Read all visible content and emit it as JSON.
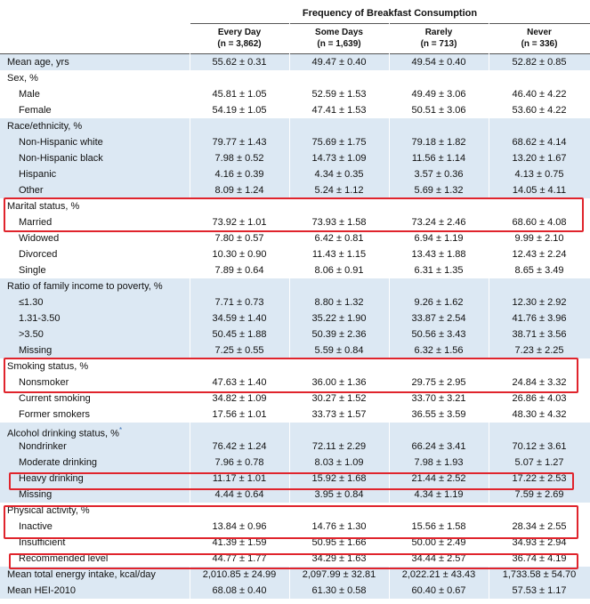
{
  "header": {
    "group_title": "Frequency of Breakfast Consumption",
    "columns": [
      {
        "name": "Every Day",
        "n": "(n = 3,862)"
      },
      {
        "name": "Some Days",
        "n": "(n = 1,639)"
      },
      {
        "name": "Rarely",
        "n": "(n = 713)"
      },
      {
        "name": "Never",
        "n": "(n = 336)"
      }
    ]
  },
  "rows": [
    {
      "label": "Mean age, yrs",
      "values": [
        "55.62 ± 0.31",
        "49.47 ± 0.40",
        "49.54 ± 0.40",
        "52.82 ± 0.85"
      ]
    },
    {
      "label": "Sex, %",
      "values": [
        "",
        "",
        "",
        ""
      ]
    },
    {
      "label": "Male",
      "values": [
        "45.81 ± 1.05",
        "52.59 ± 1.53",
        "49.49 ± 3.06",
        "46.40 ± 4.22"
      ]
    },
    {
      "label": "Female",
      "values": [
        "54.19 ± 1.05",
        "47.41 ± 1.53",
        "50.51 ± 3.06",
        "53.60 ± 4.22"
      ]
    },
    {
      "label": "Race/ethnicity, %",
      "values": [
        "",
        "",
        "",
        ""
      ]
    },
    {
      "label": "Non-Hispanic white",
      "values": [
        "79.77 ± 1.43",
        "75.69 ± 1.75",
        "79.18 ± 1.82",
        "68.62 ± 4.14"
      ]
    },
    {
      "label": "Non-Hispanic black",
      "values": [
        "7.98 ± 0.52",
        "14.73 ± 1.09",
        "11.56 ± 1.14",
        "13.20 ± 1.67"
      ]
    },
    {
      "label": "Hispanic",
      "values": [
        "4.16 ± 0.39",
        "4.34 ± 0.35",
        "3.57 ± 0.36",
        "4.13 ± 0.75"
      ]
    },
    {
      "label": "Other",
      "values": [
        "8.09 ± 1.24",
        "5.24 ± 1.12",
        "5.69 ± 1.32",
        "14.05 ± 4.11"
      ]
    },
    {
      "label": "Marital status, %",
      "values": [
        "",
        "",
        "",
        ""
      ]
    },
    {
      "label": "Married",
      "values": [
        "73.92 ± 1.01",
        "73.93 ± 1.58",
        "73.24 ± 2.46",
        "68.60 ± 4.08"
      ]
    },
    {
      "label": "Widowed",
      "values": [
        "7.80 ± 0.57",
        "6.42 ± 0.81",
        "6.94 ± 1.19",
        "9.99 ± 2.10"
      ]
    },
    {
      "label": "Divorced",
      "values": [
        "10.30 ± 0.90",
        "11.43 ± 1.15",
        "13.43 ± 1.88",
        "12.43 ± 2.24"
      ]
    },
    {
      "label": "Single",
      "values": [
        "7.89 ± 0.64",
        "8.06 ± 0.91",
        "6.31 ± 1.35",
        "8.65 ± 3.49"
      ]
    },
    {
      "label": "Ratio of family income to poverty, %",
      "values": [
        "",
        "",
        "",
        ""
      ]
    },
    {
      "label": "≤1.30",
      "values": [
        "7.71 ± 0.73",
        "8.80 ± 1.32",
        "9.26 ± 1.62",
        "12.30 ± 2.92"
      ]
    },
    {
      "label": "1.31-3.50",
      "values": [
        "34.59 ± 1.40",
        "35.22 ± 1.90",
        "33.87 ± 2.54",
        "41.76 ± 3.96"
      ]
    },
    {
      "label": ">3.50",
      "values": [
        "50.45 ± 1.88",
        "50.39 ± 2.36",
        "50.56 ± 3.43",
        "38.71 ± 3.56"
      ]
    },
    {
      "label": "Missing",
      "values": [
        "7.25 ± 0.55",
        "5.59 ± 0.84",
        "6.32 ± 1.56",
        "7.23 ± 2.25"
      ]
    },
    {
      "label": "Smoking status, %",
      "values": [
        "",
        "",
        "",
        ""
      ]
    },
    {
      "label": "Nonsmoker",
      "values": [
        "47.63 ± 1.40",
        "36.00 ± 1.36",
        "29.75 ± 2.95",
        "24.84 ± 3.32"
      ]
    },
    {
      "label": "Current smoking",
      "values": [
        "34.82 ± 1.09",
        "30.27 ± 1.52",
        "33.70 ± 3.21",
        "26.86 ± 4.03"
      ]
    },
    {
      "label": "Former smokers",
      "values": [
        "17.56 ± 1.01",
        "33.73 ± 1.57",
        "36.55 ± 3.59",
        "48.30 ± 4.32"
      ]
    },
    {
      "label": "Alcohol drinking status, %",
      "values": [
        "",
        "",
        "",
        ""
      ]
    },
    {
      "label": "Nondrinker",
      "values": [
        "76.42 ± 1.24",
        "72.11 ± 2.29",
        "66.24 ± 3.41",
        "70.12 ± 3.61"
      ]
    },
    {
      "label": "Moderate drinking",
      "values": [
        "7.96 ± 0.78",
        "8.03 ± 1.09",
        "7.98 ± 1.93",
        "5.07 ± 1.27"
      ]
    },
    {
      "label": "Heavy drinking",
      "values": [
        "11.17 ± 1.01",
        "15.92 ± 1.68",
        "21.44 ± 2.52",
        "17.22 ± 2.53"
      ]
    },
    {
      "label": "Missing",
      "values": [
        "4.44 ± 0.64",
        "3.95 ± 0.84",
        "4.34 ± 1.19",
        "7.59 ± 2.69"
      ]
    },
    {
      "label": "Physical activity, %",
      "values": [
        "",
        "",
        "",
        ""
      ]
    },
    {
      "label": "Inactive",
      "values": [
        "13.84 ± 0.96",
        "14.76 ± 1.30",
        "15.56 ± 1.58",
        "28.34 ± 2.55"
      ]
    },
    {
      "label": "Insufficient",
      "values": [
        "41.39 ± 1.59",
        "50.95 ± 1.66",
        "50.00 ± 2.49",
        "34.93 ± 2.94"
      ]
    },
    {
      "label": "Recommended level",
      "values": [
        "44.77 ± 1.77",
        "34.29 ± 1.63",
        "34.44 ± 2.57",
        "36.74 ± 4.19"
      ]
    },
    {
      "label": "Mean total energy intake, kcal/day",
      "values": [
        "2,010.85 ± 24.99",
        "2,097.99 ± 32.81",
        "2,022.21 ± 43.43",
        "1,733.58 ± 54.70"
      ]
    },
    {
      "label": "Mean HEI-2010",
      "values": [
        "68.08 ± 0.40",
        "61.30 ± 0.58",
        "60.40 ± 0.67",
        "57.53 ± 1.17"
      ]
    }
  ],
  "footnote_marker": "*",
  "highlight_color": "#e0242c",
  "shade_color": "#dce8f3"
}
